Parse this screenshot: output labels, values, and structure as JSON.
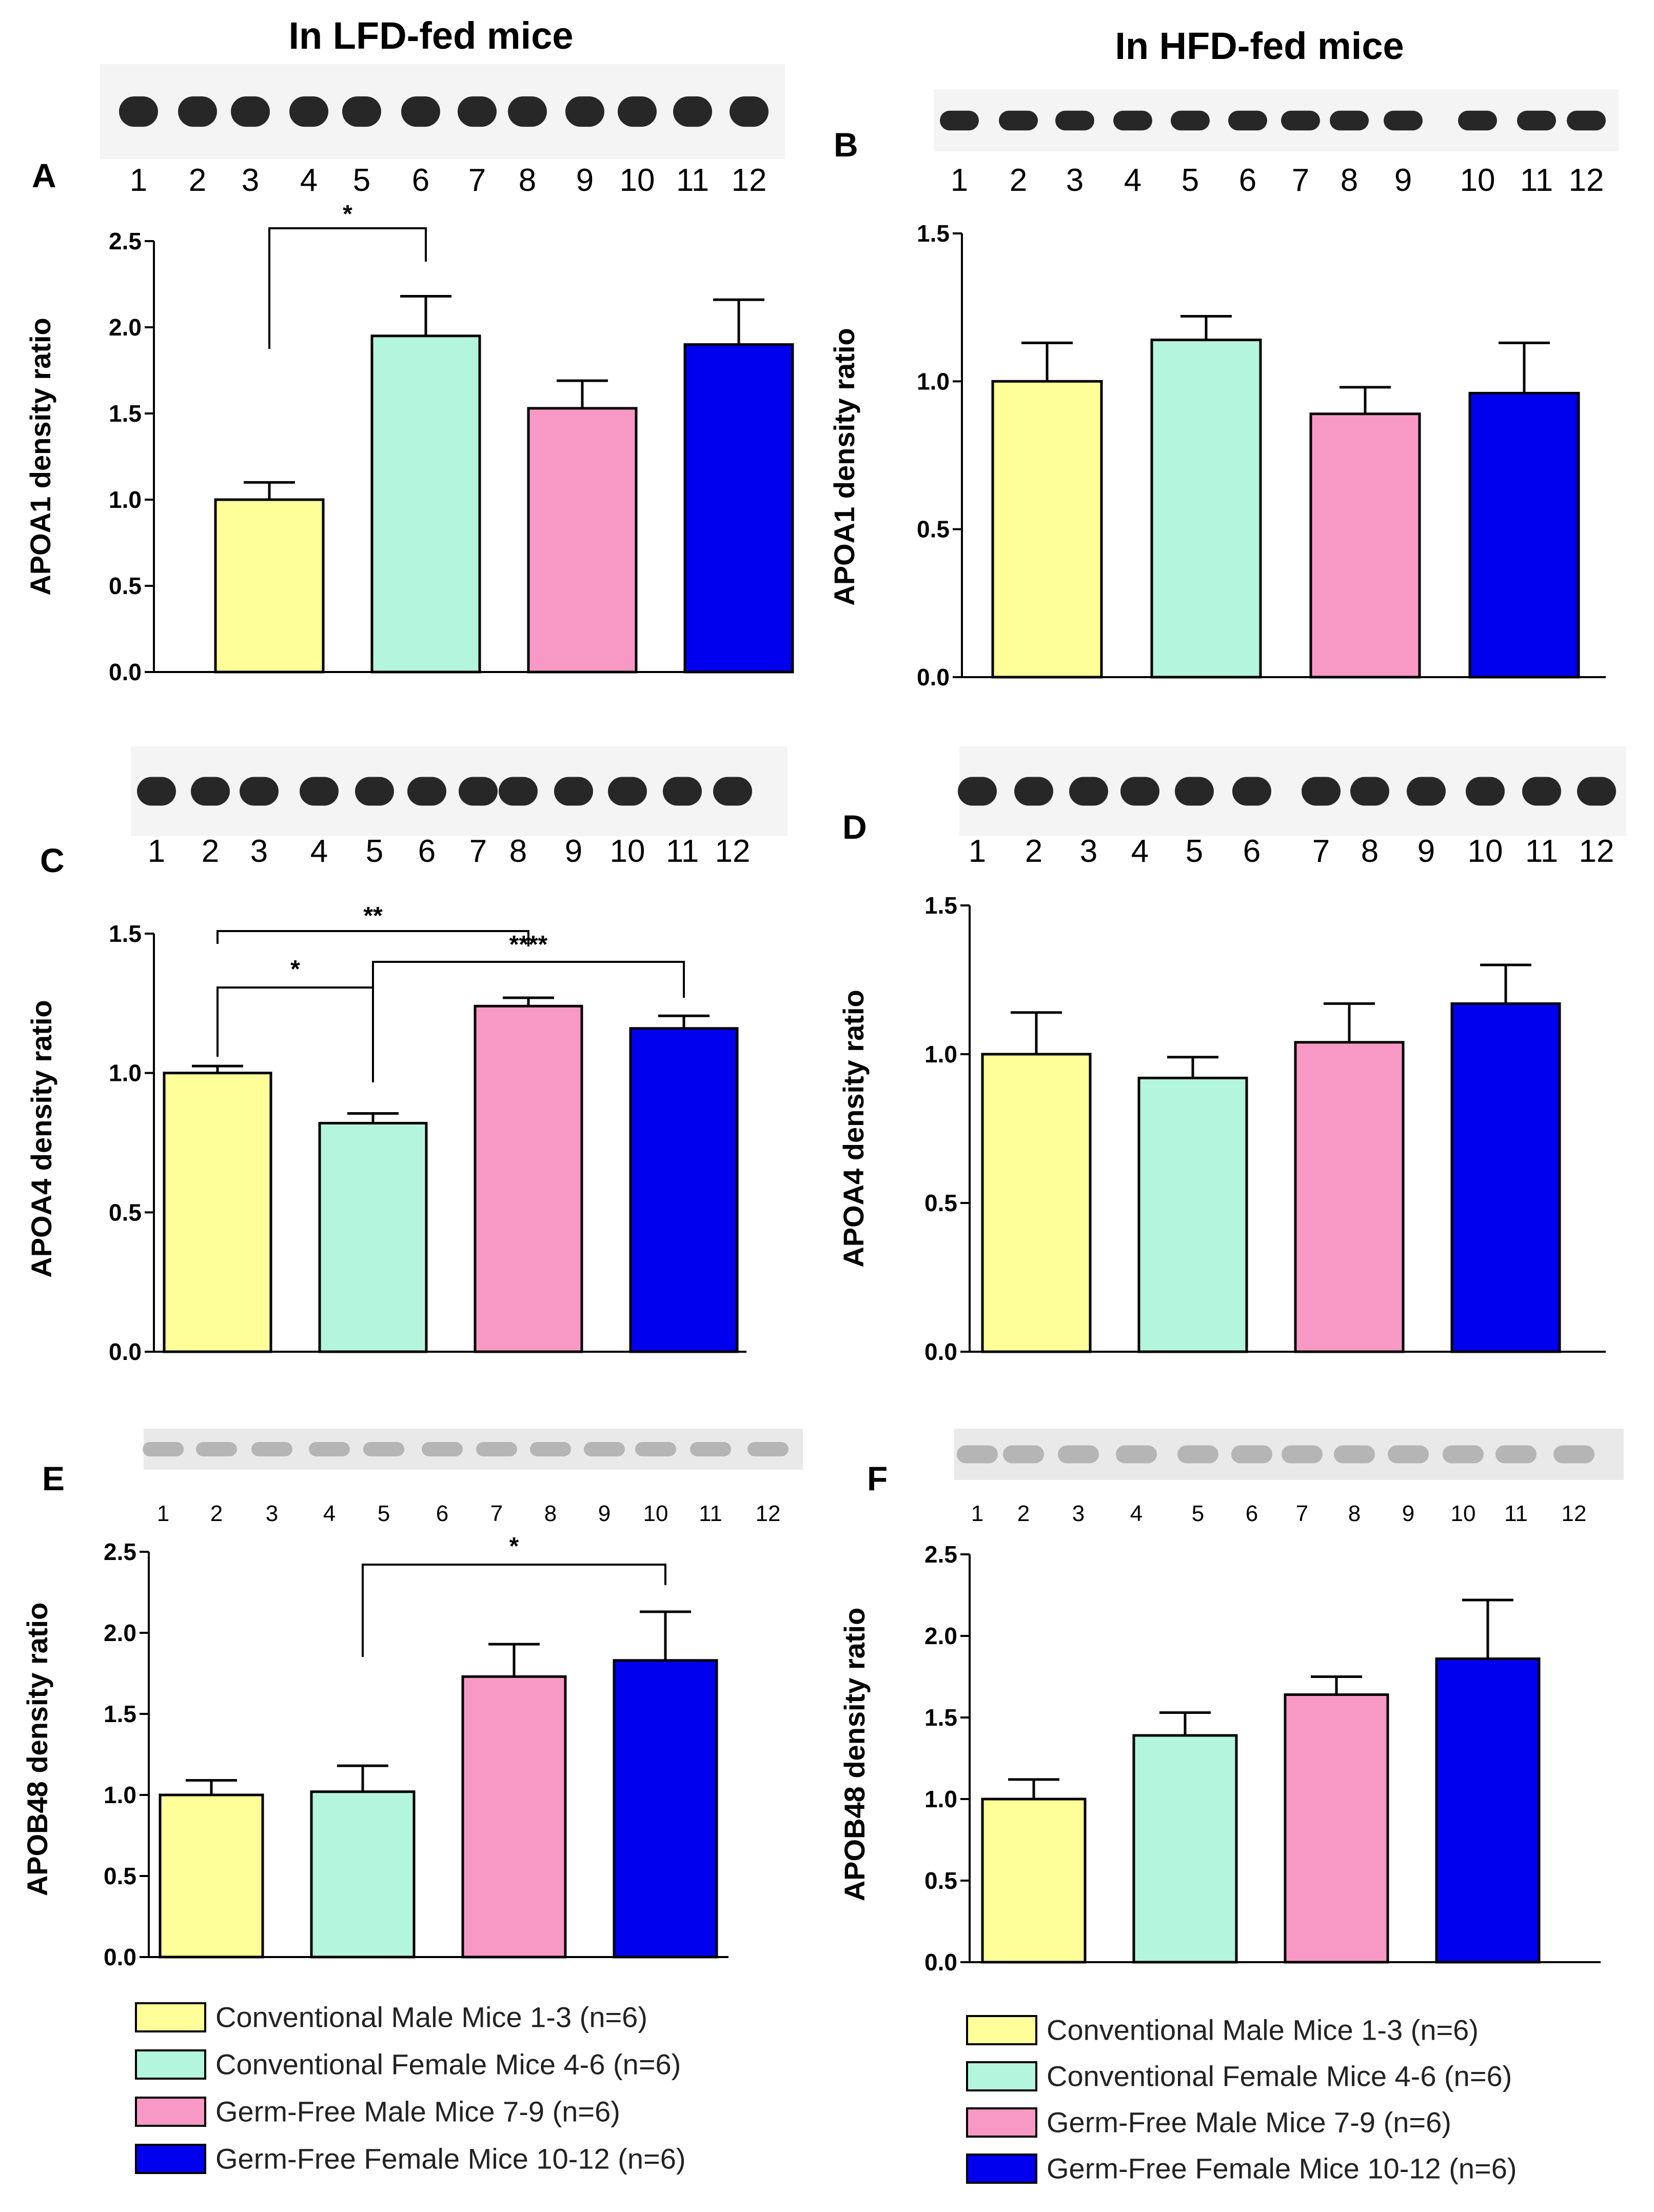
{
  "column_titles": {
    "left": "In LFD-fed mice",
    "right": "In HFD-fed mice"
  },
  "lane_labels": [
    "1",
    "2",
    "3",
    "4",
    "5",
    "6",
    "7",
    "8",
    "9",
    "10",
    "11",
    "12"
  ],
  "colors": {
    "conv_male": "#FFFF99",
    "conv_female": "#B3F5DD",
    "gf_male": "#F799C4",
    "gf_female": "#0000EE",
    "band_dark": "#111111",
    "band_faint": "#8a8a8a"
  },
  "legend": {
    "items": [
      "Conventional Male Mice 1-3 (n=6)",
      "Conventional Female Mice 4-6 (n=6)",
      "Germ-Free Male Mice 7-9 (n=6)",
      "Germ-Free Female Mice 10-12 (n=6)"
    ]
  },
  "chart_data": [
    {
      "panel": "A",
      "type": "bar",
      "diet": "LFD",
      "ylabel": "APOA1 density ratio",
      "ylim": [
        0,
        2.5
      ],
      "yticks": [
        "0.0",
        "0.5",
        "1.0",
        "1.5",
        "2.0",
        "2.5"
      ],
      "categories": [
        "Conventional Male Mice 1-3 (n=6)",
        "Conventional Female Mice 4-6 (n=6)",
        "Germ-Free Male Mice 7-9 (n=6)",
        "Germ-Free Female Mice 10-12 (n=6)"
      ],
      "values": [
        1.0,
        1.95,
        1.53,
        1.9
      ],
      "errors": [
        0.1,
        0.23,
        0.16,
        0.26
      ],
      "significance": [
        {
          "from": 0,
          "to": 1,
          "label": "*"
        }
      ]
    },
    {
      "panel": "B",
      "type": "bar",
      "diet": "HFD",
      "ylabel": "APOA1 density ratio",
      "ylim": [
        0,
        1.5
      ],
      "yticks": [
        "0.0",
        "0.5",
        "1.0",
        "1.5"
      ],
      "categories": [
        "Conventional Male Mice 1-3 (n=6)",
        "Conventional Female Mice 4-6 (n=6)",
        "Germ-Free Male Mice 7-9 (n=6)",
        "Germ-Free Female Mice 10-12 (n=6)"
      ],
      "values": [
        1.0,
        1.14,
        0.89,
        0.96
      ],
      "errors": [
        0.13,
        0.08,
        0.09,
        0.17
      ],
      "significance": []
    },
    {
      "panel": "C",
      "type": "bar",
      "diet": "LFD",
      "ylabel": "APOA4 density ratio",
      "ylim": [
        0,
        1.5
      ],
      "yticks": [
        "0.0",
        "0.5",
        "1.0",
        "1.5"
      ],
      "categories": [
        "Conventional Male Mice 1-3 (n=6)",
        "Conventional Female Mice 4-6 (n=6)",
        "Germ-Free Male Mice 7-9 (n=6)",
        "Germ-Free Female Mice 10-12 (n=6)"
      ],
      "values": [
        1.0,
        0.82,
        1.24,
        1.16
      ],
      "errors": [
        0.025,
        0.035,
        0.03,
        0.045
      ],
      "significance": [
        {
          "from": 0,
          "to": 2,
          "label": "**"
        },
        {
          "from": 0,
          "to": 1,
          "label": "*"
        },
        {
          "from": 1,
          "to": 3,
          "label": "****"
        }
      ]
    },
    {
      "panel": "D",
      "type": "bar",
      "diet": "HFD",
      "ylabel": "APOA4 density ratio",
      "ylim": [
        0,
        1.5
      ],
      "yticks": [
        "0.0",
        "0.5",
        "1.0",
        "1.5"
      ],
      "categories": [
        "Conventional Male Mice 1-3 (n=6)",
        "Conventional Female Mice 4-6 (n=6)",
        "Germ-Free Male Mice 7-9 (n=6)",
        "Germ-Free Female Mice 10-12 (n=6)"
      ],
      "values": [
        1.0,
        0.92,
        1.04,
        1.17
      ],
      "errors": [
        0.14,
        0.07,
        0.13,
        0.13
      ],
      "significance": []
    },
    {
      "panel": "E",
      "type": "bar",
      "diet": "LFD",
      "ylabel": "APOB48 density ratio",
      "ylim": [
        0,
        2.5
      ],
      "yticks": [
        "0.0",
        "0.5",
        "1.0",
        "1.5",
        "2.0",
        "2.5"
      ],
      "categories": [
        "Conventional Male Mice 1-3 (n=6)",
        "Conventional Female Mice 4-6 (n=6)",
        "Germ-Free Male Mice 7-9 (n=6)",
        "Germ-Free Female Mice 10-12 (n=6)"
      ],
      "values": [
        1.0,
        1.02,
        1.73,
        1.83
      ],
      "errors": [
        0.09,
        0.16,
        0.2,
        0.3
      ],
      "significance": [
        {
          "from": 1,
          "to": 3,
          "label": "*"
        }
      ]
    },
    {
      "panel": "F",
      "type": "bar",
      "diet": "HFD",
      "ylabel": "APOB48 density ratio",
      "ylim": [
        0,
        2.5
      ],
      "yticks": [
        "0.0",
        "0.5",
        "1.0",
        "1.5",
        "2.0",
        "2.5"
      ],
      "categories": [
        "Conventional Male Mice 1-3 (n=6)",
        "Conventional Female Mice 4-6 (n=6)",
        "Germ-Free Male Mice 7-9 (n=6)",
        "Germ-Free Female Mice 10-12 (n=6)"
      ],
      "values": [
        1.0,
        1.39,
        1.64,
        1.86
      ],
      "errors": [
        0.12,
        0.14,
        0.11,
        0.36
      ],
      "significance": []
    }
  ]
}
